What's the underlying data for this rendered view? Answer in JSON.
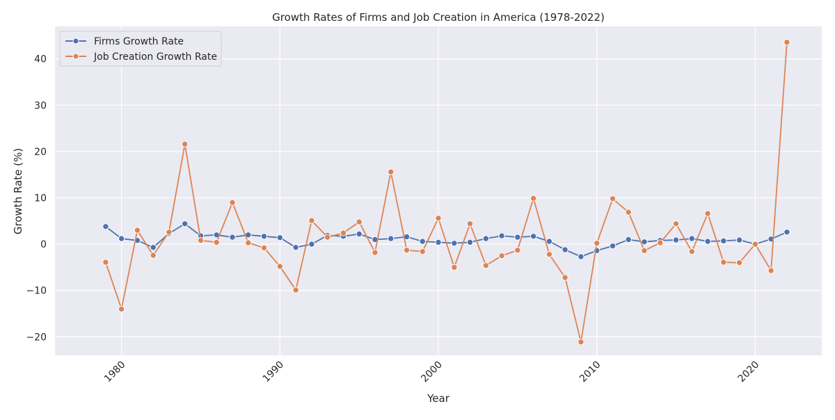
{
  "chart_data": {
    "type": "line",
    "title": "Growth Rates of Firms and Job Creation in America (1978-2022)",
    "xlabel": "Year",
    "ylabel": "Growth Rate (%)",
    "xlim": [
      1975.8,
      2024.2
    ],
    "ylim": [
      -24,
      47
    ],
    "xticks": [
      1980,
      1990,
      2000,
      2010,
      2020
    ],
    "yticks": [
      -20,
      -10,
      0,
      10,
      20,
      30,
      40
    ],
    "grid": true,
    "legend_position": "top-left",
    "x": [
      1979,
      1980,
      1981,
      1982,
      1983,
      1984,
      1985,
      1986,
      1987,
      1988,
      1989,
      1990,
      1991,
      1992,
      1993,
      1994,
      1995,
      1996,
      1997,
      1998,
      1999,
      2000,
      2001,
      2002,
      2003,
      2004,
      2005,
      2006,
      2007,
      2008,
      2009,
      2010,
      2011,
      2012,
      2013,
      2014,
      2015,
      2016,
      2017,
      2018,
      2019,
      2020,
      2021,
      2022
    ],
    "series": [
      {
        "name": "Firms Growth Rate",
        "color": "#4c72b0",
        "values": [
          3.8,
          1.2,
          0.8,
          -0.7,
          2.3,
          4.4,
          1.8,
          2.0,
          1.5,
          2.0,
          1.7,
          1.4,
          -0.7,
          0.0,
          1.9,
          1.7,
          2.2,
          1.0,
          1.2,
          1.6,
          0.6,
          0.4,
          0.2,
          0.4,
          1.2,
          1.8,
          1.5,
          1.7,
          0.6,
          -1.2,
          -2.7,
          -1.4,
          -0.4,
          1.0,
          0.5,
          0.8,
          0.9,
          1.2,
          0.6,
          0.7,
          0.9,
          0.0,
          1.1,
          2.6
        ]
      },
      {
        "name": "Job Creation Growth Rate",
        "color": "#dd8452",
        "values": [
          -3.9,
          -14.0,
          3.0,
          -2.4,
          2.6,
          21.6,
          0.8,
          0.4,
          9.0,
          0.3,
          -0.8,
          -4.8,
          -9.9,
          5.1,
          1.5,
          2.4,
          4.8,
          -1.8,
          15.6,
          -1.3,
          -1.6,
          5.6,
          -5.0,
          4.4,
          -4.6,
          -2.5,
          -1.3,
          9.9,
          -2.2,
          -7.2,
          -21.1,
          0.2,
          9.8,
          6.9,
          -1.4,
          0.3,
          4.4,
          -1.6,
          6.6,
          -3.9,
          -4.0,
          0.0,
          -5.7,
          43.6
        ]
      }
    ]
  }
}
